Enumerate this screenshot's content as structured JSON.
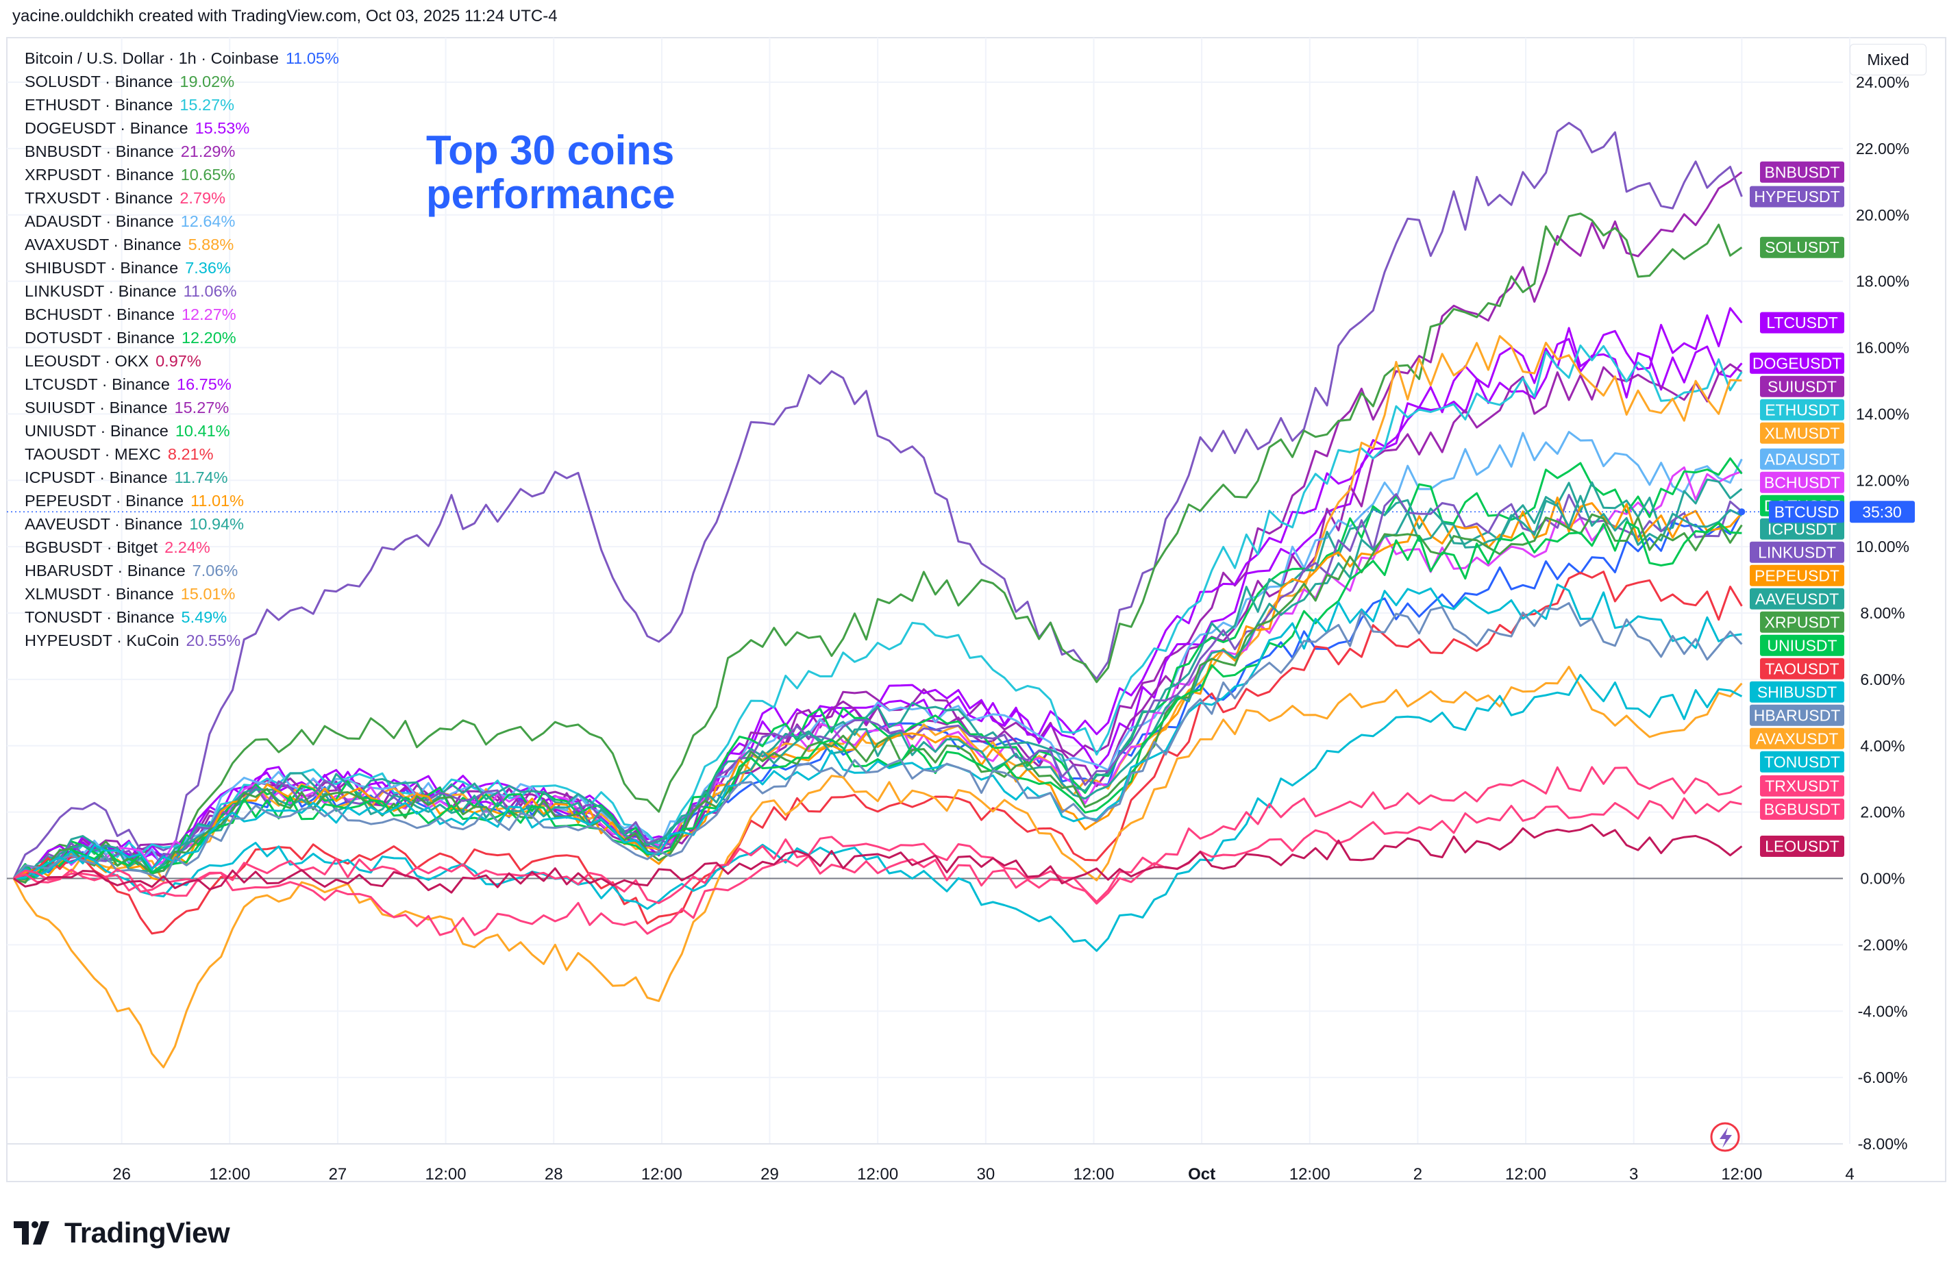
{
  "header": {
    "text": "yacine.ouldchikh created with TradingView.com, Oct 03, 2025 11:24 UTC-4"
  },
  "title": {
    "line1": "Top 30 coins",
    "line2": "performance"
  },
  "scale_button": {
    "label": "Mixed"
  },
  "branding": {
    "name": "TradingView"
  },
  "zero_line_label": "0.00%",
  "last_price_badge": {
    "label": "BTCUSD",
    "countdown": "35:30",
    "color": "#2962ff"
  },
  "legend": [
    {
      "name": "Bitcoin / U.S. Dollar · 1h · Coinbase",
      "value": "11.05%",
      "color": "#2962ff"
    },
    {
      "name": "SOLUSDT · Binance",
      "value": "19.02%",
      "color": "#43a047"
    },
    {
      "name": "ETHUSDT · Binance",
      "value": "15.27%",
      "color": "#26c6da"
    },
    {
      "name": "DOGEUSDT · Binance",
      "value": "15.53%",
      "color": "#aa00ff"
    },
    {
      "name": "BNBUSDT · Binance",
      "value": "21.29%",
      "color": "#9c27b0"
    },
    {
      "name": "XRPUSDT · Binance",
      "value": "10.65%",
      "color": "#43a047"
    },
    {
      "name": "TRXUSDT · Binance",
      "value": "2.79%",
      "color": "#ff4081"
    },
    {
      "name": "ADAUSDT · Binance",
      "value": "12.64%",
      "color": "#64b5f6"
    },
    {
      "name": "AVAXUSDT · Binance",
      "value": "5.88%",
      "color": "#ffa726"
    },
    {
      "name": "SHIBUSDT · Binance",
      "value": "7.36%",
      "color": "#00bcd4"
    },
    {
      "name": "LINKUSDT · Binance",
      "value": "11.06%",
      "color": "#7e57c2"
    },
    {
      "name": "BCHUSDT · Binance",
      "value": "12.27%",
      "color": "#e040fb"
    },
    {
      "name": "DOTUSDT · Binance",
      "value": "12.20%",
      "color": "#00c853"
    },
    {
      "name": "LEOUSDT · OKX",
      "value": "0.97%",
      "color": "#c2185b"
    },
    {
      "name": "LTCUSDT · Binance",
      "value": "16.75%",
      "color": "#aa00ff"
    },
    {
      "name": "SUIUSDT · Binance",
      "value": "15.27%",
      "color": "#9c27b0"
    },
    {
      "name": "UNIUSDT · Binance",
      "value": "10.41%",
      "color": "#00c853"
    },
    {
      "name": "TAOUSDT · MEXC",
      "value": "8.21%",
      "color": "#f23645"
    },
    {
      "name": "ICPUSDT · Binance",
      "value": "11.74%",
      "color": "#26a69a"
    },
    {
      "name": "PEPEUSDT · Binance",
      "value": "11.01%",
      "color": "#ff9800"
    },
    {
      "name": "AAVEUSDT · Binance",
      "value": "10.94%",
      "color": "#26a69a"
    },
    {
      "name": "BGBUSDT · Bitget",
      "value": "2.24%",
      "color": "#ff4081"
    },
    {
      "name": "HBARUSDT · Binance",
      "value": "7.06%",
      "color": "#6c8ebf"
    },
    {
      "name": "XLMUSDT · Binance",
      "value": "15.01%",
      "color": "#ffa726"
    },
    {
      "name": "TONUSDT · Binance",
      "value": "5.49%",
      "color": "#00bcd4"
    },
    {
      "name": "HYPEUSDT · KuCoin",
      "value": "20.55%",
      "color": "#7e57c2"
    }
  ],
  "chart_data": {
    "type": "line",
    "title": "Top 30 coins performance",
    "xlabel": "",
    "ylabel": "",
    "ylim": [
      -8,
      24
    ],
    "y_ticks": [
      "24.00%",
      "22.00%",
      "20.00%",
      "18.00%",
      "16.00%",
      "14.00%",
      "12.00%",
      "10.00%",
      "8.00%",
      "6.00%",
      "4.00%",
      "2.00%",
      "0.00%",
      "-2.00%",
      "-4.00%",
      "-6.00%",
      "-8.00%"
    ],
    "x_ticks": [
      {
        "label": "26",
        "t": 0.5,
        "bold": false
      },
      {
        "label": "12:00",
        "t": 1.0,
        "bold": false
      },
      {
        "label": "27",
        "t": 1.5,
        "bold": false
      },
      {
        "label": "12:00",
        "t": 2.0,
        "bold": false
      },
      {
        "label": "28",
        "t": 2.5,
        "bold": false
      },
      {
        "label": "12:00",
        "t": 3.0,
        "bold": false
      },
      {
        "label": "29",
        "t": 3.5,
        "bold": false
      },
      {
        "label": "12:00",
        "t": 4.0,
        "bold": false
      },
      {
        "label": "30",
        "t": 4.5,
        "bold": false
      },
      {
        "label": "12:00",
        "t": 5.0,
        "bold": false
      },
      {
        "label": "Oct",
        "t": 5.5,
        "bold": true
      },
      {
        "label": "12:00",
        "t": 6.0,
        "bold": false
      },
      {
        "label": "2",
        "t": 6.5,
        "bold": false
      },
      {
        "label": "12:00",
        "t": 7.0,
        "bold": false
      },
      {
        "label": "3",
        "t": 7.5,
        "bold": false
      },
      {
        "label": "12:00",
        "t": 8.0,
        "bold": false
      },
      {
        "label": "4",
        "t": 8.5,
        "bold": false
      }
    ],
    "x_range": [
      0.0,
      8.5
    ],
    "anchors_t": [
      0,
      0.3,
      0.7,
      1.1,
      1.5,
      2.0,
      2.6,
      3.0,
      3.4,
      3.8,
      4.2,
      4.6,
      5.0,
      5.5,
      6.0,
      6.4,
      6.8,
      7.2,
      7.6,
      8.0
    ],
    "series": [
      {
        "name": "BTCUSD",
        "label": "BTCUSD",
        "color": "#2962ff",
        "last": 11.05,
        "values": [
          0,
          0.8,
          0.6,
          2.5,
          2.4,
          2.3,
          2.0,
          1.2,
          2.8,
          4.0,
          4.4,
          4.2,
          2.8,
          5.5,
          7.2,
          8.2,
          8.9,
          9.6,
          10.0,
          11.05
        ]
      },
      {
        "name": "BNBUSDT",
        "label": "BNBUSDT",
        "color": "#9c27b0",
        "last": 21.29,
        "values": [
          0,
          1.0,
          0.8,
          2.6,
          2.6,
          2.4,
          2.2,
          0.8,
          3.2,
          5.2,
          5.5,
          4.8,
          3.8,
          8.0,
          12.0,
          15.5,
          17.0,
          19.0,
          19.0,
          21.29
        ]
      },
      {
        "name": "HYPEUSDT",
        "label": "HYPEUSDT",
        "color": "#7e57c2",
        "last": 20.55,
        "values": [
          0,
          2.5,
          0.5,
          7.5,
          8.5,
          11.0,
          11.8,
          6.5,
          14.0,
          15.0,
          12.5,
          8.5,
          6.0,
          13.0,
          14.0,
          19.0,
          20.5,
          22.5,
          21.0,
          20.55
        ]
      },
      {
        "name": "SOLUSDT",
        "label": "SOLUSDT",
        "color": "#43a047",
        "last": 19.02,
        "values": [
          0,
          1.2,
          0.5,
          3.8,
          4.5,
          4.3,
          4.6,
          2.0,
          7.5,
          7.0,
          9.0,
          8.5,
          6.0,
          11.5,
          13.0,
          15.0,
          17.5,
          19.5,
          18.5,
          19.02
        ]
      },
      {
        "name": "LTCUSDT",
        "label": "LTCUSDT",
        "color": "#aa00ff",
        "last": 16.75,
        "values": [
          0,
          1.0,
          0.7,
          3.0,
          3.0,
          2.8,
          2.5,
          1.0,
          4.2,
          5.0,
          5.2,
          4.8,
          4.5,
          8.5,
          11.0,
          14.0,
          15.0,
          16.0,
          16.0,
          16.75
        ]
      },
      {
        "name": "DOGEUSDT",
        "label": "DOGEUSDT",
        "color": "#aa00ff",
        "last": 15.53,
        "values": [
          0,
          1.0,
          0.4,
          3.2,
          3.0,
          2.6,
          2.3,
          0.8,
          4.5,
          5.5,
          5.4,
          5.0,
          3.5,
          7.5,
          10.5,
          13.5,
          14.5,
          15.5,
          15.0,
          15.53
        ]
      },
      {
        "name": "SUIUSDT",
        "label": "SUIUSDT",
        "color": "#9c27b0",
        "last": 15.27,
        "values": [
          0,
          0.8,
          0.5,
          2.8,
          2.6,
          2.4,
          2.3,
          0.6,
          4.0,
          5.0,
          4.6,
          4.2,
          3.0,
          7.0,
          10.0,
          13.0,
          14.0,
          15.0,
          14.5,
          15.27
        ]
      },
      {
        "name": "ETHUSDT",
        "label": "ETHUSDT",
        "color": "#26c6da",
        "last": 15.27,
        "values": [
          0,
          1.0,
          0.7,
          3.0,
          3.0,
          2.7,
          2.7,
          1.2,
          5.0,
          6.5,
          7.5,
          6.0,
          4.0,
          9.0,
          11.5,
          14.0,
          14.5,
          15.5,
          15.0,
          15.27
        ]
      },
      {
        "name": "XLMUSDT",
        "label": "XLMUSDT",
        "color": "#ffa726",
        "last": 15.01,
        "values": [
          0,
          0.5,
          0.2,
          2.5,
          2.5,
          2.4,
          2.2,
          0.8,
          3.5,
          4.0,
          4.5,
          3.8,
          2.5,
          6.0,
          9.0,
          15.0,
          15.5,
          16.0,
          14.0,
          15.01
        ]
      },
      {
        "name": "ADAUSDT",
        "label": "ADAUSDT",
        "color": "#64b5f6",
        "last": 12.64,
        "values": [
          0,
          1.0,
          0.5,
          3.0,
          2.8,
          2.6,
          2.4,
          1.2,
          4.0,
          4.8,
          5.0,
          4.5,
          3.0,
          7.0,
          10.0,
          12.0,
          12.5,
          13.5,
          12.0,
          12.64
        ]
      },
      {
        "name": "BCHUSDT",
        "label": "BCHUSDT",
        "color": "#e040fb",
        "last": 12.27,
        "values": [
          0,
          0.8,
          0.6,
          2.5,
          2.5,
          2.3,
          2.2,
          1.0,
          3.8,
          4.5,
          4.2,
          3.8,
          2.5,
          6.5,
          8.5,
          10.0,
          9.5,
          10.5,
          11.5,
          12.27
        ]
      },
      {
        "name": "DOTUSDT",
        "label": "DOTUSDT",
        "color": "#00c853",
        "last": 12.2,
        "values": [
          0,
          0.9,
          0.4,
          2.8,
          2.6,
          2.4,
          2.3,
          0.9,
          4.2,
          4.8,
          4.6,
          4.0,
          2.8,
          6.8,
          9.5,
          11.5,
          11.0,
          12.0,
          11.5,
          12.2
        ]
      },
      {
        "name": "ICPUSDT",
        "label": "ICPUSDT",
        "color": "#26a69a",
        "last": 11.74,
        "values": [
          0,
          1.0,
          0.3,
          3.0,
          2.8,
          2.6,
          2.4,
          1.0,
          4.0,
          4.5,
          5.0,
          4.3,
          2.8,
          7.2,
          9.8,
          11.0,
          10.5,
          11.5,
          11.0,
          11.74
        ]
      },
      {
        "name": "LINKUSDT",
        "label": "LINKUSDT",
        "color": "#7e57c2",
        "last": 11.06,
        "values": [
          0,
          0.9,
          0.5,
          2.6,
          2.6,
          2.4,
          2.2,
          1.0,
          3.8,
          4.6,
          4.4,
          4.0,
          3.0,
          6.5,
          9.0,
          11.0,
          10.5,
          11.0,
          10.5,
          11.06
        ]
      },
      {
        "name": "PEPEUSDT",
        "label": "PEPEUSDT",
        "color": "#ff9800",
        "last": 11.01,
        "values": [
          0,
          0.6,
          0.2,
          2.5,
          2.4,
          2.2,
          2.0,
          0.6,
          3.5,
          4.0,
          4.2,
          3.5,
          1.5,
          6.0,
          9.0,
          10.5,
          10.0,
          11.0,
          10.5,
          11.01
        ]
      },
      {
        "name": "AAVEUSDT",
        "label": "AAVEUSDT",
        "color": "#26a69a",
        "last": 10.94,
        "values": [
          0,
          0.8,
          0.4,
          2.4,
          2.3,
          2.2,
          2.1,
          1.0,
          3.6,
          4.2,
          4.0,
          3.6,
          2.5,
          6.2,
          8.8,
          10.5,
          10.2,
          11.0,
          10.5,
          10.94
        ]
      },
      {
        "name": "XRPUSDT",
        "label": "XRPUSDT",
        "color": "#43a047",
        "last": 10.65,
        "values": [
          0,
          0.8,
          0.3,
          2.5,
          2.3,
          2.1,
          2.0,
          0.8,
          3.4,
          4.0,
          3.8,
          3.4,
          2.2,
          6.0,
          8.5,
          10.2,
          10.0,
          10.8,
          10.2,
          10.65
        ]
      },
      {
        "name": "UNIUSDT",
        "label": "UNIUSDT",
        "color": "#00c853",
        "last": 10.41,
        "values": [
          0,
          0.8,
          0.3,
          2.2,
          2.1,
          2.0,
          1.9,
          0.7,
          3.3,
          3.8,
          3.6,
          3.2,
          2.0,
          5.8,
          8.0,
          9.8,
          9.5,
          10.5,
          10.0,
          10.41
        ]
      },
      {
        "name": "TAOUSDT",
        "label": "TAOUSDT",
        "color": "#f23645",
        "last": 8.21,
        "values": [
          0,
          0.6,
          -1.8,
          0.8,
          0.7,
          0.6,
          0.5,
          -1.5,
          1.5,
          2.5,
          2.2,
          2.0,
          0.5,
          5.0,
          6.5,
          7.5,
          7.0,
          9.0,
          8.5,
          8.21
        ]
      },
      {
        "name": "SHIBUSDT",
        "label": "SHIBUSDT",
        "color": "#00bcd4",
        "last": 7.36,
        "values": [
          0,
          0.8,
          0.4,
          2.0,
          2.0,
          1.9,
          1.8,
          0.8,
          3.0,
          3.5,
          3.2,
          2.8,
          1.8,
          5.5,
          7.5,
          8.5,
          8.0,
          8.5,
          7.5,
          7.36
        ]
      },
      {
        "name": "HBARUSDT",
        "label": "HBARUSDT",
        "color": "#6c8ebf",
        "last": 7.06,
        "values": [
          0,
          0.7,
          0.2,
          2.0,
          1.9,
          1.8,
          1.7,
          0.6,
          2.8,
          3.4,
          3.2,
          2.8,
          1.8,
          5.2,
          7.0,
          8.0,
          7.5,
          8.0,
          7.0,
          7.06
        ]
      },
      {
        "name": "AVAXUSDT",
        "label": "AVAXUSDT",
        "color": "#ffa726",
        "last": 5.88,
        "values": [
          0,
          -2.5,
          -5.5,
          -0.5,
          -0.3,
          -1.5,
          -2.5,
          -3.5,
          1.8,
          2.8,
          2.5,
          2.2,
          0.0,
          4.5,
          5.0,
          5.5,
          5.5,
          6.0,
          4.2,
          5.88
        ]
      },
      {
        "name": "TONUSDT",
        "label": "TONUSDT",
        "color": "#00bcd4",
        "last": 5.49,
        "values": [
          0,
          0.5,
          -0.5,
          0.8,
          0.6,
          0.2,
          -0.2,
          -0.8,
          0.8,
          0.8,
          0.2,
          -0.8,
          -2.0,
          0.5,
          3.5,
          4.5,
          5.0,
          6.0,
          5.0,
          5.49
        ]
      },
      {
        "name": "TRXUSDT",
        "label": "TRXUSDT",
        "color": "#ff4081",
        "last": 2.79,
        "values": [
          0,
          0.3,
          -0.5,
          0.3,
          0.3,
          0.2,
          0.0,
          -0.5,
          0.8,
          1.0,
          1.0,
          0.5,
          -0.5,
          1.5,
          2.2,
          2.5,
          2.7,
          3.0,
          3.0,
          2.79
        ]
      },
      {
        "name": "BGBUSDT",
        "label": "BGBUSDT",
        "color": "#ff4081",
        "last": 2.24,
        "values": [
          0,
          0.2,
          -0.3,
          0.0,
          -0.5,
          -1.5,
          -1.0,
          -1.5,
          0.2,
          0.5,
          0.3,
          0.0,
          -0.5,
          0.8,
          1.2,
          1.5,
          1.8,
          2.0,
          2.0,
          2.24
        ]
      },
      {
        "name": "LEOUSDT",
        "label": "LEOUSDT",
        "color": "#c2185b",
        "last": 0.97,
        "values": [
          0,
          0.1,
          -0.2,
          0.1,
          0.0,
          -0.2,
          0.1,
          0.0,
          0.5,
          0.6,
          0.5,
          0.3,
          0.0,
          0.5,
          0.8,
          0.9,
          1.0,
          1.5,
          1.0,
          0.97
        ]
      }
    ]
  }
}
